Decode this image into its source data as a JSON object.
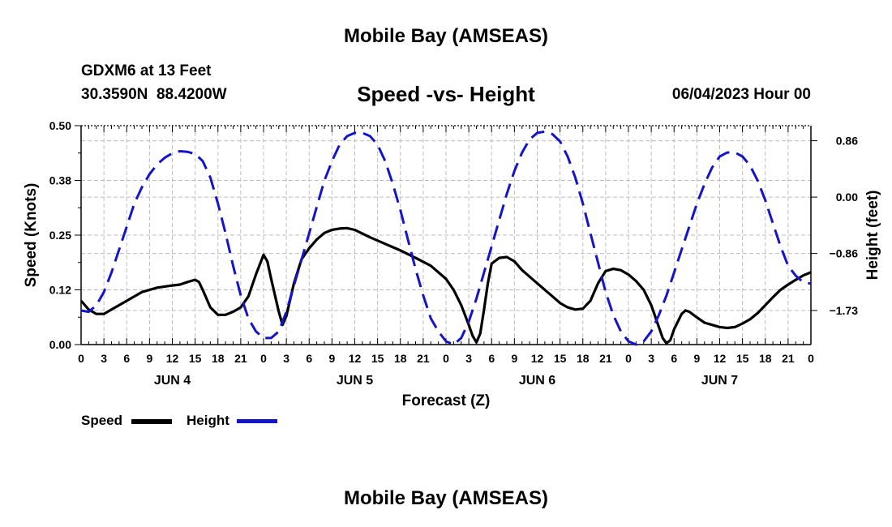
{
  "chart_data": {
    "type": "line",
    "title": "Mobile Bay (AMSEAS)",
    "subtitle": "Speed -vs- Height",
    "station": "GDXM6 at 13 Feet",
    "coords": "30.3590N  88.4200W",
    "datetime": "06/04/2023 Hour 00",
    "xlabel": "Forecast (Z)",
    "ylabel_left": "Speed (Knots)",
    "ylabel_right": "Height (feet)",
    "x_range_hours": [
      0,
      96
    ],
    "ylim_left": [
      0,
      0.5
    ],
    "ylim_right": [
      -2.25,
      1.09
    ],
    "x_ticks": [
      {
        "h": 0,
        "label": "0"
      },
      {
        "h": 3,
        "label": "3"
      },
      {
        "h": 6,
        "label": "6"
      },
      {
        "h": 9,
        "label": "9"
      },
      {
        "h": 12,
        "label": "12"
      },
      {
        "h": 15,
        "label": "15"
      },
      {
        "h": 18,
        "label": "18"
      },
      {
        "h": 21,
        "label": "21"
      },
      {
        "h": 24,
        "label": "0"
      },
      {
        "h": 27,
        "label": "3"
      },
      {
        "h": 30,
        "label": "6"
      },
      {
        "h": 33,
        "label": "9"
      },
      {
        "h": 36,
        "label": "12"
      },
      {
        "h": 39,
        "label": "15"
      },
      {
        "h": 42,
        "label": "18"
      },
      {
        "h": 45,
        "label": "21"
      },
      {
        "h": 48,
        "label": "0"
      },
      {
        "h": 51,
        "label": "3"
      },
      {
        "h": 54,
        "label": "6"
      },
      {
        "h": 57,
        "label": "9"
      },
      {
        "h": 60,
        "label": "12"
      },
      {
        "h": 63,
        "label": "15"
      },
      {
        "h": 66,
        "label": "18"
      },
      {
        "h": 69,
        "label": "21"
      },
      {
        "h": 72,
        "label": "0"
      },
      {
        "h": 75,
        "label": "3"
      },
      {
        "h": 78,
        "label": "6"
      },
      {
        "h": 81,
        "label": "9"
      },
      {
        "h": 84,
        "label": "12"
      },
      {
        "h": 87,
        "label": "15"
      },
      {
        "h": 90,
        "label": "18"
      },
      {
        "h": 93,
        "label": "21"
      },
      {
        "h": 96,
        "label": "0"
      }
    ],
    "day_labels": [
      {
        "h": 12,
        "label": "JUN 4"
      },
      {
        "h": 36,
        "label": "JUN 5"
      },
      {
        "h": 60,
        "label": "JUN 6"
      },
      {
        "h": 84,
        "label": "JUN 7"
      }
    ],
    "left_ticks": [
      {
        "v": 0.0,
        "label": "0.00"
      },
      {
        "v": 0.125,
        "label": "0.12"
      },
      {
        "v": 0.25,
        "label": "0.25"
      },
      {
        "v": 0.375,
        "label": "0.38"
      },
      {
        "v": 0.5,
        "label": "0.50"
      }
    ],
    "right_ticks": [
      {
        "v": -1.73,
        "label": "−1.73"
      },
      {
        "v": -0.86,
        "label": "−0.86"
      },
      {
        "v": 0.0,
        "label": "0.00"
      },
      {
        "v": 0.86,
        "label": "0.86"
      }
    ],
    "series": [
      {
        "name": "Speed",
        "axis": "left",
        "color": "#000000",
        "style": "solid",
        "points": [
          [
            0,
            0.1
          ],
          [
            1,
            0.08
          ],
          [
            2,
            0.07
          ],
          [
            3,
            0.07
          ],
          [
            4,
            0.08
          ],
          [
            6,
            0.1
          ],
          [
            8,
            0.12
          ],
          [
            9,
            0.125
          ],
          [
            10,
            0.13
          ],
          [
            12,
            0.135
          ],
          [
            13,
            0.137
          ],
          [
            14,
            0.143
          ],
          [
            15,
            0.148
          ],
          [
            15.5,
            0.143
          ],
          [
            16,
            0.125
          ],
          [
            17,
            0.085
          ],
          [
            18,
            0.068
          ],
          [
            19,
            0.068
          ],
          [
            20,
            0.075
          ],
          [
            21,
            0.085
          ],
          [
            22,
            0.11
          ],
          [
            23,
            0.16
          ],
          [
            24,
            0.205
          ],
          [
            24.5,
            0.19
          ],
          [
            25,
            0.15
          ],
          [
            26,
            0.075
          ],
          [
            26.5,
            0.045
          ],
          [
            27,
            0.065
          ],
          [
            28,
            0.14
          ],
          [
            29,
            0.195
          ],
          [
            30,
            0.22
          ],
          [
            31,
            0.24
          ],
          [
            32,
            0.255
          ],
          [
            33,
            0.262
          ],
          [
            34,
            0.265
          ],
          [
            35,
            0.266
          ],
          [
            36,
            0.262
          ],
          [
            38,
            0.245
          ],
          [
            40,
            0.23
          ],
          [
            42,
            0.215
          ],
          [
            44,
            0.198
          ],
          [
            46,
            0.18
          ],
          [
            48,
            0.15
          ],
          [
            49,
            0.125
          ],
          [
            50,
            0.09
          ],
          [
            51,
            0.045
          ],
          [
            51.5,
            0.02
          ],
          [
            52,
            0.005
          ],
          [
            52.5,
            0.025
          ],
          [
            53,
            0.08
          ],
          [
            53.5,
            0.14
          ],
          [
            54,
            0.185
          ],
          [
            55,
            0.198
          ],
          [
            56,
            0.2
          ],
          [
            57,
            0.19
          ],
          [
            58,
            0.17
          ],
          [
            60,
            0.14
          ],
          [
            62,
            0.11
          ],
          [
            63,
            0.095
          ],
          [
            64,
            0.085
          ],
          [
            65,
            0.08
          ],
          [
            66,
            0.082
          ],
          [
            67,
            0.1
          ],
          [
            68,
            0.14
          ],
          [
            69,
            0.168
          ],
          [
            70,
            0.173
          ],
          [
            71,
            0.17
          ],
          [
            72,
            0.16
          ],
          [
            73,
            0.145
          ],
          [
            74,
            0.125
          ],
          [
            75,
            0.09
          ],
          [
            76,
            0.04
          ],
          [
            76.5,
            0.015
          ],
          [
            77,
            0.003
          ],
          [
            77.5,
            0.01
          ],
          [
            78,
            0.035
          ],
          [
            79,
            0.07
          ],
          [
            79.5,
            0.078
          ],
          [
            80,
            0.075
          ],
          [
            81,
            0.062
          ],
          [
            82,
            0.05
          ],
          [
            83,
            0.045
          ],
          [
            84,
            0.04
          ],
          [
            85,
            0.038
          ],
          [
            86,
            0.04
          ],
          [
            87,
            0.048
          ],
          [
            88,
            0.058
          ],
          [
            89,
            0.072
          ],
          [
            90,
            0.09
          ],
          [
            91,
            0.108
          ],
          [
            92,
            0.125
          ],
          [
            93,
            0.137
          ],
          [
            94,
            0.148
          ],
          [
            95,
            0.158
          ],
          [
            96,
            0.165
          ]
        ]
      },
      {
        "name": "Height",
        "axis": "right",
        "color": "#1414c8",
        "style": "dashed",
        "points": [
          [
            0,
            -1.73
          ],
          [
            1,
            -1.75
          ],
          [
            2,
            -1.65
          ],
          [
            3,
            -1.45
          ],
          [
            4,
            -1.15
          ],
          [
            5,
            -0.8
          ],
          [
            6,
            -0.45
          ],
          [
            7,
            -0.1
          ],
          [
            8,
            0.15
          ],
          [
            9,
            0.35
          ],
          [
            10,
            0.5
          ],
          [
            11,
            0.6
          ],
          [
            12,
            0.67
          ],
          [
            13,
            0.7
          ],
          [
            14,
            0.69
          ],
          [
            15,
            0.66
          ],
          [
            16,
            0.55
          ],
          [
            17,
            0.3
          ],
          [
            18,
            -0.1
          ],
          [
            19,
            -0.55
          ],
          [
            20,
            -1.05
          ],
          [
            21,
            -1.5
          ],
          [
            22,
            -1.85
          ],
          [
            23,
            -2.05
          ],
          [
            24,
            -2.15
          ],
          [
            25,
            -2.15
          ],
          [
            26,
            -2.05
          ],
          [
            27,
            -1.75
          ],
          [
            28,
            -1.35
          ],
          [
            29,
            -0.95
          ],
          [
            30,
            -0.55
          ],
          [
            31,
            -0.15
          ],
          [
            32,
            0.25
          ],
          [
            33,
            0.55
          ],
          [
            34,
            0.8
          ],
          [
            35,
            0.93
          ],
          [
            36,
            0.98
          ],
          [
            37,
            0.98
          ],
          [
            38,
            0.93
          ],
          [
            39,
            0.8
          ],
          [
            40,
            0.55
          ],
          [
            41,
            0.2
          ],
          [
            42,
            -0.2
          ],
          [
            43,
            -0.65
          ],
          [
            44,
            -1.1
          ],
          [
            45,
            -1.5
          ],
          [
            46,
            -1.85
          ],
          [
            47,
            -2.05
          ],
          [
            48,
            -2.2
          ],
          [
            49,
            -2.25
          ],
          [
            50,
            -2.15
          ],
          [
            51,
            -1.9
          ],
          [
            52,
            -1.55
          ],
          [
            53,
            -1.15
          ],
          [
            54,
            -0.75
          ],
          [
            55,
            -0.35
          ],
          [
            56,
            0.05
          ],
          [
            57,
            0.4
          ],
          [
            58,
            0.68
          ],
          [
            59,
            0.88
          ],
          [
            60,
            0.98
          ],
          [
            61,
            1.0
          ],
          [
            62,
            0.96
          ],
          [
            63,
            0.85
          ],
          [
            64,
            0.62
          ],
          [
            65,
            0.3
          ],
          [
            66,
            -0.1
          ],
          [
            67,
            -0.55
          ],
          [
            68,
            -1.0
          ],
          [
            69,
            -1.45
          ],
          [
            70,
            -1.8
          ],
          [
            71,
            -2.05
          ],
          [
            72,
            -2.2
          ],
          [
            73,
            -2.25
          ],
          [
            74,
            -2.2
          ],
          [
            75,
            -2.05
          ],
          [
            76,
            -1.8
          ],
          [
            77,
            -1.5
          ],
          [
            78,
            -1.15
          ],
          [
            79,
            -0.8
          ],
          [
            80,
            -0.45
          ],
          [
            81,
            -0.1
          ],
          [
            82,
            0.2
          ],
          [
            83,
            0.45
          ],
          [
            84,
            0.62
          ],
          [
            85,
            0.68
          ],
          [
            86,
            0.68
          ],
          [
            87,
            0.62
          ],
          [
            88,
            0.48
          ],
          [
            89,
            0.25
          ],
          [
            90,
            -0.05
          ],
          [
            91,
            -0.4
          ],
          [
            92,
            -0.75
          ],
          [
            93,
            -1.05
          ],
          [
            94,
            -1.2
          ],
          [
            95,
            -1.3
          ],
          [
            96,
            -1.32
          ]
        ]
      }
    ],
    "legend": {
      "speed_label": "Speed",
      "height_label": "Height"
    }
  },
  "bottom_title": "Mobile Bay (AMSEAS)"
}
